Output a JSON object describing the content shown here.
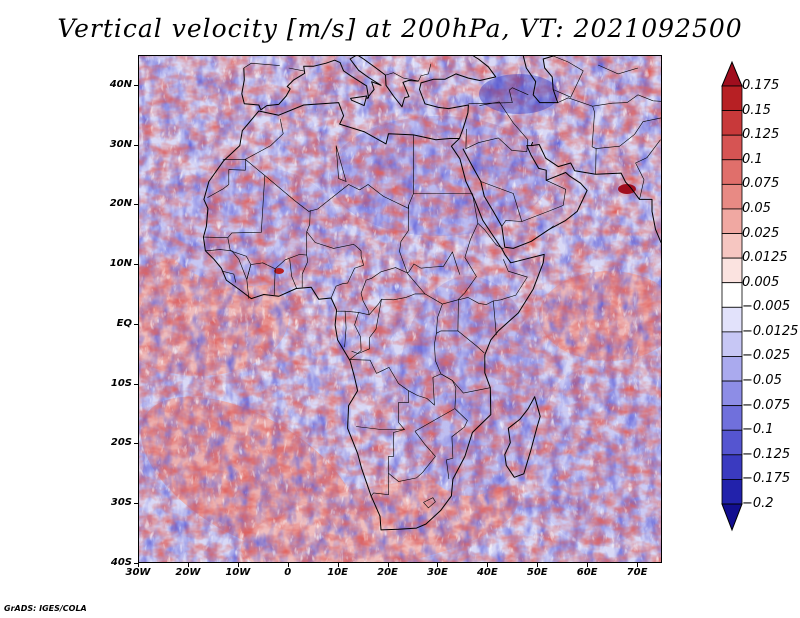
{
  "title": "Vertical velocity [m/s] at 200hPa, VT: 2021092500",
  "credit": "GrADS: IGES/COLA",
  "map": {
    "lon_range": [
      -30,
      75
    ],
    "lat_range": [
      -40,
      45
    ],
    "lat_ticks": [
      {
        "value": 40,
        "label": "40N"
      },
      {
        "value": 30,
        "label": "30N"
      },
      {
        "value": 20,
        "label": "20N"
      },
      {
        "value": 10,
        "label": "10N"
      },
      {
        "value": 0,
        "label": "EQ"
      },
      {
        "value": -10,
        "label": "10S"
      },
      {
        "value": -20,
        "label": "20S"
      },
      {
        "value": -30,
        "label": "30S"
      },
      {
        "value": -40,
        "label": "40S"
      }
    ],
    "lon_ticks": [
      {
        "value": -30,
        "label": "30W"
      },
      {
        "value": -20,
        "label": "20W"
      },
      {
        "value": -10,
        "label": "10W"
      },
      {
        "value": 0,
        "label": "0"
      },
      {
        "value": 10,
        "label": "10E"
      },
      {
        "value": 20,
        "label": "20E"
      },
      {
        "value": 30,
        "label": "30E"
      },
      {
        "value": 40,
        "label": "40E"
      },
      {
        "value": 50,
        "label": "50E"
      },
      {
        "value": 60,
        "label": "60E"
      },
      {
        "value": 70,
        "label": "70E"
      }
    ]
  },
  "colorbar": {
    "labels": [
      "0.175",
      "0.15",
      "0.125",
      "0.1",
      "0.075",
      "0.05",
      "0.025",
      "0.0125",
      "0.005",
      "−0.005",
      "−0.0125",
      "−0.025",
      "−0.05",
      "−0.075",
      "−0.1",
      "−0.125",
      "−0.175",
      "−0.2"
    ],
    "colors": [
      "#a00e1e",
      "#b72024",
      "#c8393a",
      "#d65453",
      "#e06f6b",
      "#e88a84",
      "#f0a8a2",
      "#f6c6c1",
      "#fbe3e0",
      "#ffffff",
      "#e2e2fb",
      "#c7c7f5",
      "#aaaaee",
      "#8d8de6",
      "#7070dc",
      "#5555d0",
      "#3a3ac0",
      "#2222ab",
      "#120e8f"
    ]
  }
}
